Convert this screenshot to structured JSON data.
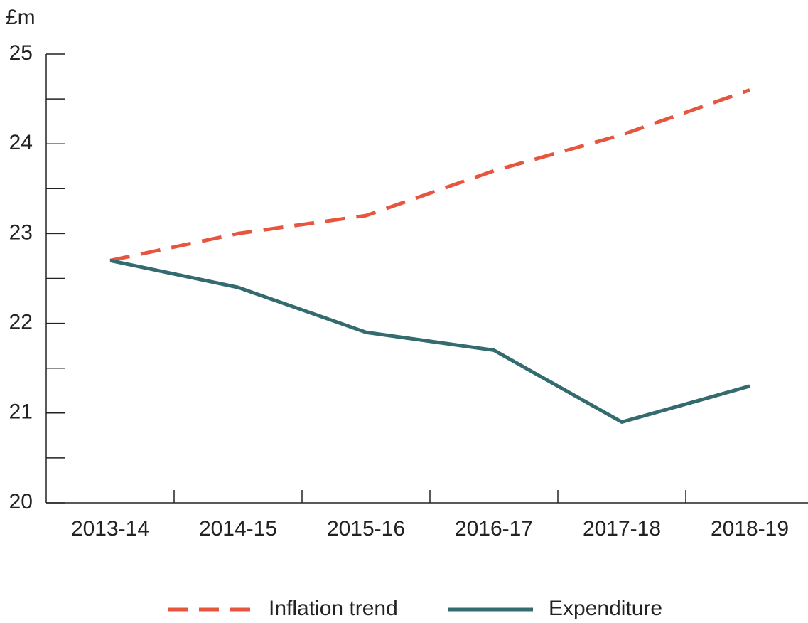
{
  "chart_data": {
    "type": "line",
    "y_label": "£m",
    "categories": [
      "2013-14",
      "2014-15",
      "2015-16",
      "2016-17",
      "2017-18",
      "2018-19"
    ],
    "series": [
      {
        "name": "Inflation trend",
        "color": "#e8553e",
        "dashed": true,
        "values": [
          22.7,
          23.0,
          23.2,
          23.7,
          24.1,
          24.6
        ]
      },
      {
        "name": "Expenditure",
        "color": "#336b6f",
        "dashed": false,
        "values": [
          22.7,
          22.4,
          21.9,
          21.7,
          20.9,
          21.3
        ]
      }
    ],
    "ylim": [
      20,
      25
    ],
    "yticks": [
      20,
      21,
      22,
      23,
      24,
      25
    ],
    "yminor_ticks": [
      20.5,
      21.5,
      22.5,
      23.5,
      24.5
    ]
  }
}
